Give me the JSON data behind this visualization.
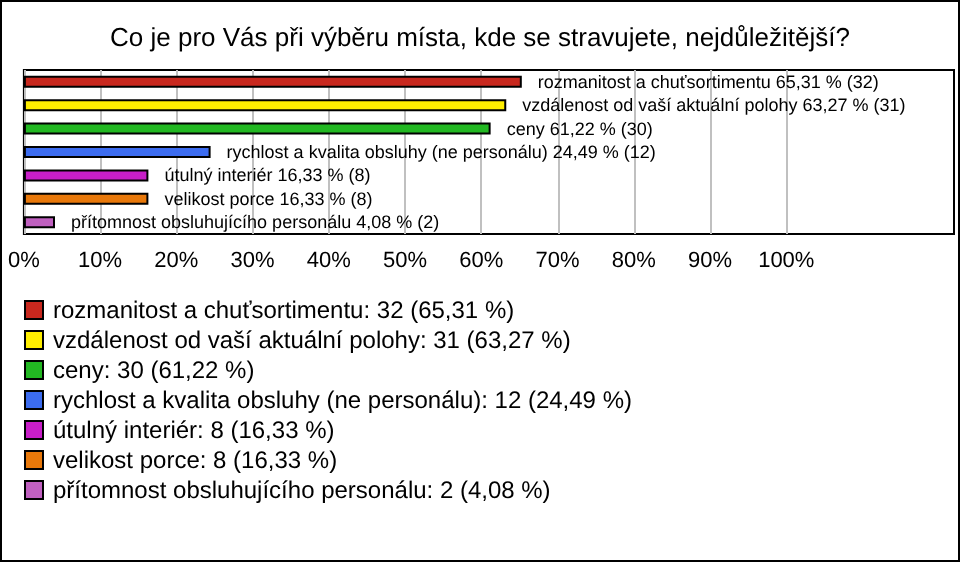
{
  "chart_data": {
    "type": "bar",
    "orientation": "horizontal",
    "stacked": true,
    "title": "Co je pro Vás při výběru místa, kde se stravujete, nejdůležitější?",
    "categories": [
      null,
      null,
      null,
      null,
      null,
      null,
      null
    ],
    "series": [
      {
        "name": "rozmanitost a chuťsortimentu: 32 (65,31 %)",
        "color": "#c8281e",
        "values": [
          65.31,
          null,
          null,
          null,
          null,
          null,
          null
        ],
        "value_labels": [
          "rozmanitost a chuťsortimentu 65,31 % (32)",
          null,
          null,
          null,
          null,
          null,
          null
        ]
      },
      {
        "name": "vzdálenost od vaší aktuální polohy: 31 (63,27 %)",
        "color": "#ffee00",
        "values": [
          null,
          63.27,
          null,
          null,
          null,
          null,
          null
        ],
        "value_labels": [
          null,
          "vzdálenost od vaší aktuální polohy 63,27 % (31)",
          null,
          null,
          null,
          null,
          null
        ]
      },
      {
        "name": "ceny: 30 (61,22 %)",
        "color": "#22b822",
        "values": [
          null,
          null,
          61.22,
          null,
          null,
          null,
          null
        ],
        "value_labels": [
          null,
          null,
          "ceny 61,22 % (30)",
          null,
          null,
          null,
          null
        ]
      },
      {
        "name": "rychlost a kvalita obsluhy (ne personálu): 12 (24,49 %)",
        "color": "#3c6cf0",
        "values": [
          null,
          null,
          null,
          24.49,
          null,
          null,
          null
        ],
        "value_labels": [
          null,
          null,
          null,
          "rychlost a kvalita obsluhy (ne personálu) 24,49 % (12)",
          null,
          null,
          null
        ]
      },
      {
        "name": "útulný interiér: 8 (16,33 %)",
        "color": "#c81ec8",
        "values": [
          null,
          null,
          null,
          null,
          16.33,
          null,
          null
        ],
        "value_labels": [
          null,
          null,
          null,
          null,
          "útulný interiér 16,33 % (8)",
          null,
          null
        ]
      },
      {
        "name": "velikost porce: 8 (16,33 %)",
        "color": "#e8780a",
        "values": [
          null,
          null,
          null,
          null,
          null,
          16.33,
          null
        ],
        "value_labels": [
          null,
          null,
          null,
          null,
          null,
          "velikost porce 16,33 % (8)",
          null
        ]
      },
      {
        "name": "přítomnost obsluhujícího personálu: 2 (4,08 %)",
        "color": "#c060c0",
        "values": [
          null,
          null,
          null,
          null,
          null,
          null,
          4.08
        ],
        "value_labels": [
          null,
          null,
          null,
          null,
          null,
          null,
          "přítomnost obsluhujícího personálu 4,08 % (2)"
        ]
      }
    ],
    "xlim": [
      0,
      122
    ],
    "xticks": [
      {
        "value": 0,
        "label": "0%"
      },
      {
        "value": 10,
        "label": "10%"
      },
      {
        "value": 20,
        "label": "20%"
      },
      {
        "value": 30,
        "label": "30%"
      },
      {
        "value": 40,
        "label": "40%"
      },
      {
        "value": 50,
        "label": "50%"
      },
      {
        "value": 60,
        "label": "60%"
      },
      {
        "value": 70,
        "label": "70%"
      },
      {
        "value": 80,
        "label": "80%"
      },
      {
        "value": 90,
        "label": "90%"
      },
      {
        "value": 100,
        "label": "100%"
      }
    ],
    "grid": "x",
    "legend": "bottom",
    "tick_labels": "x"
  }
}
